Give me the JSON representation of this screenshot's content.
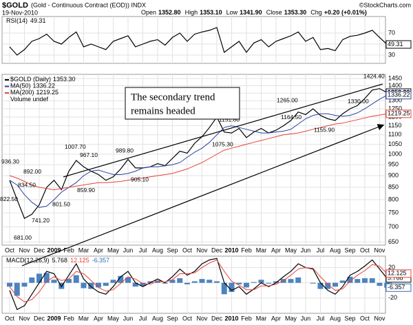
{
  "header": {
    "title": "$GOLD",
    "subtitle": "(Gold - Continuous Contract (EOD)) INDX",
    "date": "19-Nov-2010",
    "source": "©StockCharts.com",
    "quote": [
      {
        "name": "Open",
        "value": "1352.80"
      },
      {
        "name": "High",
        "value": "1353.10"
      },
      {
        "name": "Low",
        "value": "1341.90"
      },
      {
        "name": "Close",
        "value": "1353.30"
      },
      {
        "name": "Chg",
        "value": "+0.20 (+0.01%)"
      }
    ]
  },
  "chart_data": [
    {
      "type": "line",
      "title": "RSI(14)",
      "ylim": [
        15,
        100
      ],
      "yticks": [
        30,
        50,
        70
      ],
      "grid": true,
      "series": [
        {
          "name": "RSI(14)",
          "color": "#000000",
          "last_value": 49.31,
          "last_label": "49.31",
          "values": [
            45,
            30,
            40,
            55,
            60,
            68,
            55,
            50,
            62,
            72,
            45,
            50,
            45,
            40,
            55,
            60,
            65,
            45,
            50,
            55,
            58,
            48,
            62,
            70,
            55,
            68,
            72,
            75,
            80,
            35,
            45,
            55,
            35,
            52,
            58,
            45,
            55,
            60,
            65,
            72,
            55,
            62,
            40,
            42,
            38,
            58,
            64,
            66,
            70,
            75,
            62,
            49.31
          ]
        }
      ]
    },
    {
      "type": "line",
      "log": true,
      "grid": true,
      "categories": [
        "Oct",
        null,
        "Nov",
        null,
        "Dec",
        null,
        "2009",
        null,
        "Feb",
        null,
        "Mar",
        null,
        "Apr",
        null,
        "May",
        null,
        "Jun",
        null,
        "Jul",
        null,
        "Aug",
        null,
        "Sep",
        null,
        "Oct",
        null,
        "Nov",
        null,
        "Dec",
        null,
        "2010",
        null,
        "Feb",
        null,
        "Mar",
        null,
        "Apr",
        null,
        "May",
        null,
        "Jun",
        null,
        "Jul",
        null,
        "Aug",
        null,
        "Sep",
        null,
        "Oct",
        null,
        "Nov",
        null
      ],
      "ylim": [
        640,
        1480
      ],
      "yticks": [
        650,
        700,
        750,
        800,
        850,
        900,
        950,
        1000,
        1050,
        1100,
        1150,
        1200,
        1250,
        1300,
        1350,
        1400,
        1450
      ],
      "series": [
        {
          "name": "$GOLD (Daily)",
          "color": "#000000",
          "last_value": 1353.3,
          "last_label": "1353.30",
          "values": [
            880,
            800,
            730,
            745,
            780,
            850,
            880,
            840,
            920,
            970,
            940,
            920,
            905,
            880,
            895,
            930,
            975,
            935,
            935,
            940,
            955,
            945,
            980,
            1015,
            1005,
            1055,
            1090,
            1140,
            1200,
            1115,
            1110,
            1135,
            1085,
            1115,
            1135,
            1110,
            1125,
            1150,
            1180,
            1230,
            1215,
            1250,
            1210,
            1190,
            1180,
            1220,
            1250,
            1270,
            1315,
            1370,
            1380,
            1353.3
          ]
        },
        {
          "name": "MA(50)",
          "color": "#2b3fa0",
          "last_value": 1336.22,
          "last_label": "1336.22",
          "values": [
            880,
            860,
            820,
            790,
            770,
            775,
            800,
            830,
            850,
            870,
            900,
            920,
            925,
            915,
            905,
            905,
            910,
            920,
            935,
            940,
            940,
            945,
            950,
            960,
            985,
            1010,
            1030,
            1060,
            1100,
            1140,
            1150,
            1140,
            1130,
            1120,
            1110,
            1110,
            1115,
            1120,
            1130,
            1160,
            1190,
            1210,
            1220,
            1220,
            1210,
            1205,
            1210,
            1225,
            1250,
            1280,
            1310,
            1336.22
          ]
        },
        {
          "name": "MA(200)",
          "color": "#e8403a",
          "last_value": 1219.25,
          "last_label": "1219.25",
          "values": [
            900,
            890,
            875,
            860,
            850,
            845,
            840,
            845,
            850,
            855,
            860,
            865,
            870,
            870,
            872,
            875,
            880,
            885,
            890,
            895,
            900,
            905,
            910,
            920,
            930,
            945,
            960,
            980,
            1000,
            1020,
            1030,
            1040,
            1050,
            1060,
            1070,
            1080,
            1090,
            1100,
            1105,
            1110,
            1120,
            1130,
            1140,
            1150,
            1160,
            1165,
            1175,
            1185,
            1195,
            1205,
            1212,
            1219.25
          ]
        }
      ],
      "legend_texts": [
        "Volume undef"
      ],
      "note": [
        "The secondary trend",
        "remains headed"
      ],
      "annotations": [
        {
          "value": 936.3,
          "label": "936.30"
        },
        {
          "value": 822.5,
          "label": "822.50"
        },
        {
          "value": 681,
          "label": "681.00"
        },
        {
          "value": 834.5,
          "label": "834.50"
        },
        {
          "value": 741.2,
          "label": "741.20"
        },
        {
          "value": 892,
          "label": "892.00"
        },
        {
          "value": 801.5,
          "label": "801.50"
        },
        {
          "value": 1007.7,
          "label": "1007.70"
        },
        {
          "value": 967.1,
          "label": "967.10"
        },
        {
          "value": 859.9,
          "label": "859.90"
        },
        {
          "value": 989.8,
          "label": "989.80"
        },
        {
          "value": 905.1,
          "label": "905.10"
        },
        {
          "value": 1151.8,
          "label": "1151.80"
        },
        {
          "value": 1075.3,
          "label": "1075.30"
        },
        {
          "value": 1265,
          "label": "1265.00"
        },
        {
          "value": 1164.5,
          "label": "1164.50"
        },
        {
          "value": 1155.9,
          "label": "1155.90"
        },
        {
          "value": 1424.4,
          "label": "1424.40"
        },
        {
          "value": 1330,
          "label": "1330.00"
        }
      ]
    },
    {
      "type": "line",
      "title": "MACD(12,26,9)",
      "grid": true,
      "categories": [
        "Oct",
        null,
        "Nov",
        null,
        "Dec",
        null,
        "2009",
        null,
        "Feb",
        null,
        "Mar",
        null,
        "Apr",
        null,
        "May",
        null,
        "Jun",
        null,
        "Jul",
        null,
        "Aug",
        null,
        "Sep",
        null,
        "Oct",
        null,
        "Nov",
        null,
        "Dec",
        null,
        "2010",
        null,
        "Feb",
        null,
        "Mar",
        null,
        "Apr",
        null,
        "May",
        null,
        "Jun",
        null,
        "Jul",
        null,
        "Aug",
        null,
        "Sep",
        null,
        "Oct",
        null,
        "Nov",
        null
      ],
      "ylim": [
        -40,
        35
      ],
      "yticks": [
        -20,
        0,
        20
      ],
      "series": [
        {
          "name": "MACD",
          "kind": "line",
          "color": "#000000",
          "last_value": 5.768,
          "last_label": "5.768",
          "values": [
            -10,
            -35,
            -30,
            -15,
            0,
            15,
            12,
            -5,
            10,
            25,
            5,
            -5,
            -12,
            -15,
            -5,
            8,
            15,
            0,
            -5,
            0,
            5,
            0,
            8,
            18,
            10,
            15,
            25,
            30,
            32,
            0,
            -10,
            -5,
            -15,
            -8,
            0,
            -5,
            0,
            8,
            15,
            25,
            20,
            18,
            0,
            -10,
            -15,
            -5,
            10,
            15,
            22,
            30,
            18,
            5.768
          ]
        },
        {
          "name": "Signal",
          "kind": "line",
          "color": "#e8403a",
          "last_value": 12.125,
          "last_label": "12.125",
          "values": [
            -5,
            -18,
            -25,
            -22,
            -12,
            2,
            8,
            3,
            5,
            15,
            12,
            3,
            -6,
            -11,
            -9,
            -1,
            8,
            5,
            -1,
            -2,
            2,
            1,
            4,
            12,
            12,
            13,
            20,
            26,
            30,
            15,
            2,
            -3,
            -9,
            -9,
            -4,
            -4,
            -2,
            3,
            10,
            18,
            20,
            19,
            8,
            -2,
            -10,
            -8,
            2,
            10,
            16,
            24,
            22,
            12.125
          ]
        },
        {
          "name": "Histogram",
          "kind": "histogram",
          "color": "#2e6db4",
          "last_value": -6.357,
          "last_label": "-6.357",
          "values": [
            -5,
            -17,
            -5,
            7,
            12,
            13,
            4,
            -8,
            5,
            10,
            -7,
            -8,
            -6,
            -4,
            4,
            9,
            7,
            -5,
            -4,
            2,
            3,
            -1,
            4,
            6,
            -2,
            2,
            5,
            4,
            2,
            -15,
            -12,
            -2,
            -6,
            1,
            4,
            -1,
            2,
            5,
            5,
            7,
            0,
            -1,
            -8,
            -8,
            -5,
            3,
            8,
            5,
            6,
            6,
            -4,
            -6.357
          ]
        }
      ]
    }
  ]
}
